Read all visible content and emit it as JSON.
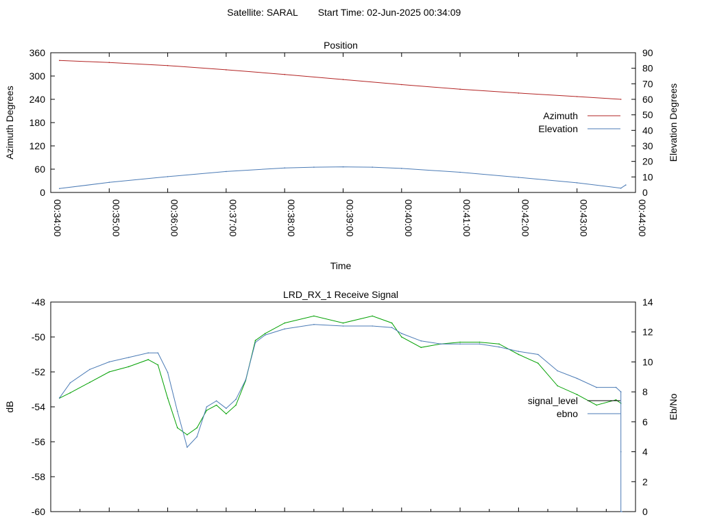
{
  "header": {
    "satellite_text": "Satellite: SARAL",
    "start_time_text": "Start Time: 02-Jun-2025 00:34:09"
  },
  "chart_data": [
    {
      "type": "line",
      "title": "Position",
      "xlabel": "Time",
      "ylabel": "Azimuth Degrees",
      "y2label": "Elevation Degrees",
      "xlim": [
        "00:34:00",
        "00:44:00"
      ],
      "ylim": [
        0,
        360
      ],
      "y2lim": [
        0,
        90
      ],
      "x_ticks": [
        "00:34:00",
        "00:35:00",
        "00:36:00",
        "00:37:00",
        "00:38:00",
        "00:39:00",
        "00:40:00",
        "00:41:00",
        "00:42:00",
        "00:43:00",
        "00:44:00"
      ],
      "y_ticks": [
        "0",
        "60",
        "120",
        "180",
        "240",
        "300",
        "360"
      ],
      "y2_ticks": [
        "0",
        "10",
        "20",
        "30",
        "40",
        "50",
        "60",
        "70",
        "80",
        "90"
      ],
      "legend_position": "right",
      "series": [
        {
          "name": "Azimuth",
          "axis": "left",
          "color": "#b22222",
          "x": [
            "00:34:09",
            "00:35:00",
            "00:36:00",
            "00:37:00",
            "00:38:00",
            "00:39:00",
            "00:40:00",
            "00:41:00",
            "00:42:00",
            "00:43:00",
            "00:43:45"
          ],
          "values": [
            340,
            335,
            327,
            316,
            304,
            291,
            278,
            266,
            256,
            247,
            240
          ]
        },
        {
          "name": "Elevation",
          "axis": "right",
          "color": "#4a7ab5",
          "x": [
            "00:34:09",
            "00:35:00",
            "00:36:00",
            "00:37:00",
            "00:38:00",
            "00:38:30",
            "00:39:00",
            "00:39:30",
            "00:40:00",
            "00:41:00",
            "00:42:00",
            "00:43:00",
            "00:43:45",
            "00:43:50"
          ],
          "values": [
            2.5,
            6.5,
            10.2,
            13.5,
            15.8,
            16.3,
            16.5,
            16.3,
            15.5,
            13,
            9.7,
            6.2,
            2.8,
            4.8
          ]
        }
      ]
    },
    {
      "type": "line",
      "title": "LRD_RX_1 Receive Signal",
      "xlabel": "",
      "ylabel": "dB",
      "y2label": "Eb/No",
      "xlim": [
        "00:34:00",
        "00:44:00"
      ],
      "ylim": [
        -60,
        -48
      ],
      "y2lim": [
        0,
        14
      ],
      "y_ticks": [
        "-48",
        "-50",
        "-52",
        "-54",
        "-56",
        "-58",
        "-60"
      ],
      "y2_ticks": [
        "0",
        "2",
        "4",
        "6",
        "8",
        "10",
        "12",
        "14"
      ],
      "legend_position": "right",
      "series": [
        {
          "name": "signal_level",
          "axis": "left",
          "color": "#00a000",
          "x": [
            "00:34:09",
            "00:34:20",
            "00:34:40",
            "00:35:00",
            "00:35:20",
            "00:35:40",
            "00:35:50",
            "00:36:00",
            "00:36:10",
            "00:36:20",
            "00:36:30",
            "00:36:40",
            "00:36:50",
            "00:37:00",
            "00:37:10",
            "00:37:20",
            "00:37:30",
            "00:37:40",
            "00:38:00",
            "00:38:30",
            "00:39:00",
            "00:39:30",
            "00:39:50",
            "00:40:00",
            "00:40:20",
            "00:40:40",
            "00:41:00",
            "00:41:20",
            "00:41:40",
            "00:42:00",
            "00:42:20",
            "00:42:40",
            "00:43:00",
            "00:43:20",
            "00:43:40",
            "00:43:45"
          ],
          "values": [
            -53.5,
            -53.2,
            -52.6,
            -52.0,
            -51.7,
            -51.3,
            -51.6,
            -53.5,
            -55.2,
            -55.6,
            -55.2,
            -54.2,
            -53.9,
            -54.4,
            -53.9,
            -52.5,
            -50.2,
            -49.8,
            -49.2,
            -48.8,
            -49.2,
            -48.8,
            -49.2,
            -50.0,
            -50.6,
            -50.4,
            -50.3,
            -50.3,
            -50.4,
            -51.0,
            -51.5,
            -52.8,
            -53.3,
            -53.9,
            -53.6,
            -53.8
          ]
        },
        {
          "name": "ebno",
          "axis": "right",
          "color": "#4a7ab5",
          "x": [
            "00:34:09",
            "00:34:20",
            "00:34:40",
            "00:35:00",
            "00:35:20",
            "00:35:40",
            "00:35:50",
            "00:36:00",
            "00:36:10",
            "00:36:20",
            "00:36:30",
            "00:36:40",
            "00:36:50",
            "00:37:00",
            "00:37:10",
            "00:37:20",
            "00:37:30",
            "00:37:40",
            "00:38:00",
            "00:38:30",
            "00:39:00",
            "00:39:30",
            "00:39:50",
            "00:40:00",
            "00:40:20",
            "00:40:40",
            "00:41:00",
            "00:41:20",
            "00:41:40",
            "00:42:00",
            "00:42:20",
            "00:42:40",
            "00:43:00",
            "00:43:20",
            "00:43:40",
            "00:43:45",
            "00:43:45",
            "00:43:45",
            "00:43:46"
          ],
          "values": [
            7.6,
            8.6,
            9.5,
            10.0,
            10.3,
            10.6,
            10.6,
            9.3,
            6.7,
            4.3,
            5.0,
            7.0,
            7.4,
            6.9,
            7.5,
            8.8,
            11.3,
            11.8,
            12.2,
            12.5,
            12.4,
            12.4,
            12.3,
            11.9,
            11.4,
            11.2,
            11.2,
            11.2,
            11.0,
            10.7,
            10.5,
            9.4,
            8.9,
            8.3,
            8.3,
            8.0,
            4.0,
            0.0,
            0.0
          ]
        }
      ]
    }
  ]
}
